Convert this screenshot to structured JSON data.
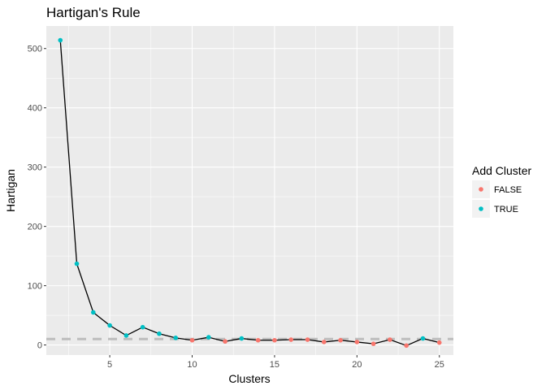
{
  "chart_data": {
    "type": "scatter",
    "title": "Hartigan's Rule",
    "xlabel": "Clusters",
    "ylabel": "Hartigan",
    "xlim": [
      1.15,
      25.85
    ],
    "ylim": [
      -17,
      538
    ],
    "xticks": [
      5,
      10,
      15,
      20,
      25
    ],
    "yticks": [
      0,
      100,
      200,
      300,
      400,
      500
    ],
    "grid": true,
    "reference_line": {
      "y": 10,
      "style": "dashed",
      "color": "#bdbdbd"
    },
    "line_color": "#000000",
    "legend": {
      "title": "Add Cluster",
      "position": "right",
      "entries": [
        {
          "label": "FALSE",
          "color": "#F8766D"
        },
        {
          "label": "TRUE",
          "color": "#00BFC4"
        }
      ]
    },
    "points": [
      {
        "x": 2,
        "y": 514,
        "add": "TRUE"
      },
      {
        "x": 3,
        "y": 137,
        "add": "TRUE"
      },
      {
        "x": 4,
        "y": 55,
        "add": "TRUE"
      },
      {
        "x": 5,
        "y": 33,
        "add": "TRUE"
      },
      {
        "x": 6,
        "y": 16,
        "add": "TRUE"
      },
      {
        "x": 7,
        "y": 30,
        "add": "TRUE"
      },
      {
        "x": 8,
        "y": 19,
        "add": "TRUE"
      },
      {
        "x": 9,
        "y": 12,
        "add": "TRUE"
      },
      {
        "x": 10,
        "y": 8,
        "add": "FALSE"
      },
      {
        "x": 11,
        "y": 13,
        "add": "TRUE"
      },
      {
        "x": 12,
        "y": 6,
        "add": "FALSE"
      },
      {
        "x": 13,
        "y": 11,
        "add": "TRUE"
      },
      {
        "x": 14,
        "y": 8,
        "add": "FALSE"
      },
      {
        "x": 15,
        "y": 8,
        "add": "FALSE"
      },
      {
        "x": 16,
        "y": 9,
        "add": "FALSE"
      },
      {
        "x": 17,
        "y": 9,
        "add": "FALSE"
      },
      {
        "x": 18,
        "y": 5,
        "add": "FALSE"
      },
      {
        "x": 19,
        "y": 8,
        "add": "FALSE"
      },
      {
        "x": 20,
        "y": 5,
        "add": "FALSE"
      },
      {
        "x": 21,
        "y": 2,
        "add": "FALSE"
      },
      {
        "x": 22,
        "y": 9,
        "add": "FALSE"
      },
      {
        "x": 23,
        "y": -1,
        "add": "FALSE"
      },
      {
        "x": 24,
        "y": 11,
        "add": "TRUE"
      },
      {
        "x": 25,
        "y": 4,
        "add": "FALSE"
      }
    ]
  }
}
